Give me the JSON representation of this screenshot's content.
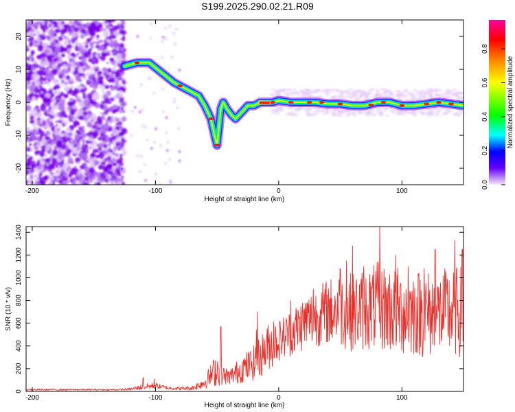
{
  "title": "S199.2025.290.02.21.R09",
  "colors": {
    "snr_line": "#e8302a",
    "track_core": "#e81e1e",
    "noise": "#7a00e6"
  },
  "chart_data": [
    {
      "type": "heatmap",
      "title": "",
      "xlabel": "Height of straight line (km)",
      "ylabel": "Frequency (Hz)",
      "xlim": [
        -205,
        150
      ],
      "ylim": [
        -25,
        25
      ],
      "x_ticks": [
        -200,
        -100,
        0,
        100
      ],
      "y_ticks": [
        -20,
        -10,
        0,
        10,
        20
      ],
      "colorbar": {
        "label": "Normalized spectral amplitude",
        "range": [
          0.0,
          0.97
        ],
        "ticks": [
          0.0,
          0.2,
          0.4,
          0.6,
          0.8
        ],
        "colormap": [
          "#f8e8fa",
          "#6400ff",
          "#0000ff",
          "#00ffff",
          "#00ff00",
          "#ffff00",
          "#ff8000",
          "#ff0000",
          "#ff00a0"
        ]
      },
      "track": {
        "x": [
          -125,
          -115,
          -105,
          -95,
          -85,
          -75,
          -65,
          -60,
          -55,
          -52,
          -50,
          -47,
          -45,
          -42,
          -38,
          -35,
          -30,
          -25,
          -20,
          -15,
          -5,
          0,
          10,
          20,
          30,
          40,
          50,
          60,
          70,
          80,
          90,
          100,
          110,
          120,
          130,
          140,
          150
        ],
        "freq": [
          11,
          12,
          12,
          9,
          6,
          4,
          2,
          -1,
          -5,
          -10,
          -13,
          -2,
          0,
          -2,
          -4,
          -5,
          -3,
          -1,
          -1,
          0,
          0,
          0.5,
          0,
          0,
          0,
          -0.5,
          -0.5,
          -1,
          -1,
          0,
          0,
          -1,
          -1,
          -0.5,
          0,
          -0.5,
          -1
        ]
      }
    },
    {
      "type": "line",
      "title": "",
      "xlabel": "Height of straight line (km)",
      "ylabel": "SNR (10 * v/v)",
      "xlim": [
        -205,
        150
      ],
      "ylim": [
        0,
        1450
      ],
      "x_ticks": [
        -200,
        -100,
        0,
        100
      ],
      "y_ticks": [
        0,
        200,
        400,
        600,
        800,
        1000,
        1200,
        1400
      ],
      "series": [
        {
          "name": "SNR",
          "envelope_x": [
            -205,
            -130,
            -120,
            -110,
            -100,
            -90,
            -80,
            -70,
            -60,
            -50,
            -45,
            -40,
            -35,
            -30,
            -25,
            -20,
            -15,
            -10,
            -5,
            0,
            10,
            20,
            30,
            40,
            50,
            60,
            70,
            80,
            90,
            100,
            110,
            120,
            130,
            140,
            150
          ],
          "envelope_y": [
            15,
            15,
            20,
            40,
            50,
            30,
            25,
            30,
            80,
            200,
            140,
            130,
            160,
            200,
            220,
            250,
            300,
            380,
            420,
            450,
            520,
            600,
            660,
            700,
            720,
            700,
            720,
            750,
            720,
            700,
            700,
            680,
            680,
            700,
            700
          ],
          "spread": [
            10,
            10,
            15,
            40,
            40,
            20,
            20,
            30,
            80,
            220,
            120,
            100,
            140,
            180,
            200,
            220,
            260,
            300,
            300,
            260,
            300,
            350,
            380,
            420,
            480,
            500,
            520,
            560,
            560,
            560,
            560,
            560,
            560,
            580,
            580
          ],
          "peaks": [
            [
              -110,
              120
            ],
            [
              -101,
              110
            ],
            [
              -47,
              570
            ],
            [
              -18,
              540
            ],
            [
              -17,
              700
            ],
            [
              -4,
              610
            ],
            [
              10,
              800
            ],
            [
              28,
              900
            ],
            [
              50,
              1080
            ],
            [
              55,
              1150
            ],
            [
              60,
              1280
            ],
            [
              69,
              1100
            ],
            [
              82,
              1450
            ],
            [
              95,
              1200
            ],
            [
              105,
              1100
            ],
            [
              118,
              1080
            ],
            [
              127,
              1250
            ],
            [
              143,
              1330
            ],
            [
              149,
              1250
            ]
          ]
        }
      ]
    }
  ]
}
